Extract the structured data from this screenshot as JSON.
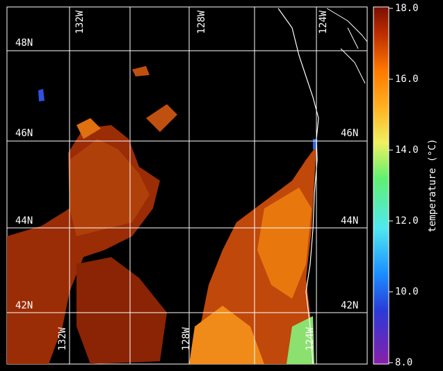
{
  "map": {
    "top_lon_labels": [
      "132W",
      "128W",
      "124W"
    ],
    "bottom_lon_labels": [
      "132W",
      "128W",
      "124W"
    ],
    "left_lat_labels": [
      "48N",
      "46N",
      "44N",
      "42N"
    ],
    "right_lat_labels": [
      "46N",
      "44N",
      "42N"
    ]
  },
  "colorbar": {
    "label": "temperature (°C)",
    "range": [
      8,
      18
    ],
    "ticks": [
      {
        "value": 8,
        "label": "8.0"
      },
      {
        "value": 10,
        "label": "10.0"
      },
      {
        "value": 12,
        "label": "12.0"
      },
      {
        "value": 14,
        "label": "14.0"
      },
      {
        "value": 16,
        "label": "16.0"
      },
      {
        "value": 18,
        "label": "18.0"
      }
    ]
  }
}
